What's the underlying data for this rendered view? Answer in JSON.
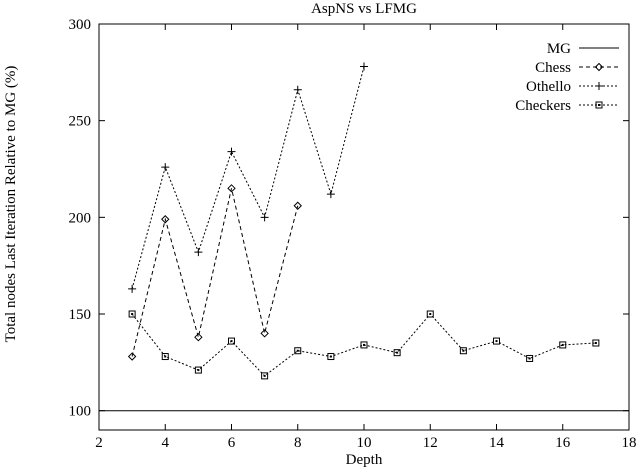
{
  "chart_data": {
    "type": "line",
    "title": "AspNS vs LFMG",
    "xlabel": "Depth",
    "ylabel": "Total nodes Last Iteration Relative to MG (%)",
    "xlim": [
      2,
      18
    ],
    "ylim": [
      90,
      300
    ],
    "xticks": [
      2,
      4,
      6,
      8,
      10,
      12,
      14,
      16,
      18
    ],
    "yticks": [
      100,
      150,
      200,
      250,
      300
    ],
    "grid": false,
    "legend_position": "top-right",
    "series": [
      {
        "name": "MG",
        "style": "solid",
        "marker": "none",
        "x": [
          2,
          18
        ],
        "values": [
          100,
          100
        ]
      },
      {
        "name": "Chess",
        "style": "dashed",
        "marker": "diamond",
        "x": [
          3,
          4,
          5,
          6,
          7,
          8
        ],
        "values": [
          128,
          199,
          138,
          215,
          140,
          206
        ]
      },
      {
        "name": "Othello",
        "style": "dotted",
        "marker": "plus",
        "x": [
          3,
          4,
          5,
          6,
          7,
          8,
          9,
          10
        ],
        "values": [
          163,
          226,
          182,
          234,
          200,
          266,
          212,
          278
        ]
      },
      {
        "name": "Checkers",
        "style": "dotted",
        "marker": "square",
        "x": [
          3,
          4,
          5,
          6,
          7,
          8,
          9,
          10,
          11,
          12,
          13,
          14,
          15,
          16,
          17
        ],
        "values": [
          150,
          128,
          121,
          136,
          118,
          131,
          128,
          134,
          130,
          150,
          131,
          136,
          127,
          134,
          135
        ]
      }
    ]
  }
}
